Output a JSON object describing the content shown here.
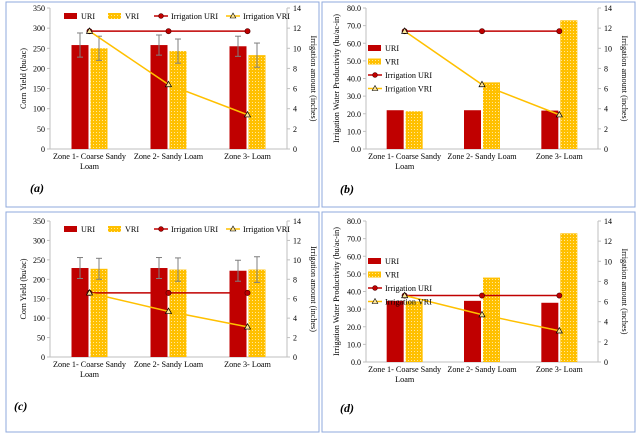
{
  "colors": {
    "uri": "#c00000",
    "vri": "#ffc000",
    "irr_uri": "#c00000",
    "irr_vri": "#ffc000",
    "border": "#8faadc",
    "axis": "#bfbfbf"
  },
  "chart_data": [
    {
      "type": "bar",
      "panel_label": "(a)",
      "categories": [
        "Zone 1- Coarse Sandy Loam",
        "Zone 2- Sandy Loam",
        "Zone 3- Loam"
      ],
      "ylabel": "Corn Yield (bu/ac)",
      "y2label": "Irrigation amount (inches)",
      "ylim": [
        0,
        350
      ],
      "yticks": [
        "0",
        "50",
        "100",
        "150",
        "200",
        "250",
        "300",
        "350"
      ],
      "ystep": 50,
      "y2lim": [
        0,
        14
      ],
      "y2ticks": [
        "0",
        "2",
        "4",
        "6",
        "8",
        "10",
        "12",
        "14"
      ],
      "y2step": 2,
      "legend": [
        "URI",
        "VRI",
        "Irrigation URI",
        "Irrigation VRI"
      ],
      "series": [
        {
          "name": "URI",
          "kind": "bar",
          "values": [
            258,
            258,
            255
          ],
          "errors": [
            30,
            25,
            25
          ]
        },
        {
          "name": "VRI",
          "kind": "bar",
          "values": [
            250,
            243,
            233
          ],
          "errors": [
            30,
            30,
            30
          ]
        },
        {
          "name": "Irrigation URI",
          "kind": "line",
          "axis": "right",
          "values": [
            11.7,
            11.7,
            11.7
          ]
        },
        {
          "name": "Irrigation VRI",
          "kind": "line",
          "axis": "right",
          "values": [
            11.7,
            6.4,
            3.4
          ]
        }
      ]
    },
    {
      "type": "bar",
      "panel_label": "(b)",
      "categories": [
        "Zone 1- Coarse Sandy Loam",
        "Zone 2- Sandy Loam",
        "Zone 3- Loam"
      ],
      "ylabel": "Irrigation Water Productivity (bu/ac-in)",
      "y2label": "Irrigation amount (inches)",
      "ylim": [
        0,
        80
      ],
      "yticks": [
        "0.0",
        "10.0",
        "20.0",
        "30.0",
        "40.0",
        "50.0",
        "60.0",
        "70.0",
        "80.0"
      ],
      "ystep": 10,
      "y2lim": [
        0,
        14
      ],
      "y2ticks": [
        "0",
        "2",
        "4",
        "6",
        "8",
        "10",
        "12",
        "14"
      ],
      "y2step": 2,
      "legend": [
        "URI",
        "VRI",
        "Irrigation URI",
        "Irrigation VRI"
      ],
      "series": [
        {
          "name": "URI",
          "kind": "bar",
          "values": [
            22.0,
            22.0,
            21.8
          ]
        },
        {
          "name": "VRI",
          "kind": "bar",
          "values": [
            21.4,
            37.8,
            73.0
          ]
        },
        {
          "name": "Irrigation URI",
          "kind": "line",
          "axis": "right",
          "values": [
            11.7,
            11.7,
            11.7
          ]
        },
        {
          "name": "Irrigation VRI",
          "kind": "line",
          "axis": "right",
          "values": [
            11.7,
            6.4,
            3.4
          ]
        }
      ]
    },
    {
      "type": "bar",
      "panel_label": "(c)",
      "categories": [
        "Zone 1- Coarse Sandy Loam",
        "Zone 2- Sandy Loam",
        "Zone 3- Loam"
      ],
      "ylabel": "Corn Yield (bu/ac)",
      "y2label": "Irrigation amount (inches)",
      "ylim": [
        0,
        350
      ],
      "yticks": [
        "0",
        "50",
        "100",
        "150",
        "200",
        "250",
        "300",
        "350"
      ],
      "ystep": 50,
      "y2lim": [
        0,
        14
      ],
      "y2ticks": [
        "0",
        "2",
        "4",
        "6",
        "8",
        "10",
        "12",
        "14"
      ],
      "y2step": 2,
      "legend": [
        "URI",
        "VRI",
        "Irrigation URI",
        "Irrigation VRI"
      ],
      "series": [
        {
          "name": "URI",
          "kind": "bar",
          "values": [
            229,
            229,
            222
          ],
          "errors": [
            27,
            27,
            27
          ]
        },
        {
          "name": "VRI",
          "kind": "bar",
          "values": [
            227,
            225,
            225
          ],
          "errors": [
            27,
            30,
            33
          ]
        },
        {
          "name": "Irrigation URI",
          "kind": "line",
          "axis": "right",
          "values": [
            6.6,
            6.6,
            6.6
          ]
        },
        {
          "name": "Irrigation VRI",
          "kind": "line",
          "axis": "right",
          "values": [
            6.6,
            4.7,
            3.1
          ]
        }
      ]
    },
    {
      "type": "bar",
      "panel_label": "(d)",
      "categories": [
        "Zone 1- Coarse Sandy Loam",
        "Zone 2- Sandy Loam",
        "Zone 3- Loam"
      ],
      "ylabel": "Irrigation Water Productivity (bu/ac-in)",
      "y2label": "Irrigation amount (inches)",
      "ylim": [
        0,
        80
      ],
      "yticks": [
        "0.0",
        "10.0",
        "20.0",
        "30.0",
        "40.0",
        "50.0",
        "60.0",
        "70.0",
        "80.0"
      ],
      "ystep": 10,
      "y2lim": [
        0,
        14
      ],
      "y2ticks": [
        "0",
        "2",
        "4",
        "6",
        "8",
        "10",
        "12",
        "14"
      ],
      "y2step": 2,
      "legend": [
        "URI",
        "VRI",
        "Irrigation URI",
        "Irrigation VRI"
      ],
      "series": [
        {
          "name": "URI",
          "kind": "bar",
          "values": [
            34.7,
            34.7,
            33.6
          ]
        },
        {
          "name": "VRI",
          "kind": "bar",
          "values": [
            34.4,
            47.9,
            73.0
          ]
        },
        {
          "name": "Irrigation URI",
          "kind": "line",
          "axis": "right",
          "values": [
            6.6,
            6.6,
            6.6
          ]
        },
        {
          "name": "Irrigation VRI",
          "kind": "line",
          "axis": "right",
          "values": [
            6.6,
            4.7,
            3.1
          ]
        }
      ]
    }
  ]
}
